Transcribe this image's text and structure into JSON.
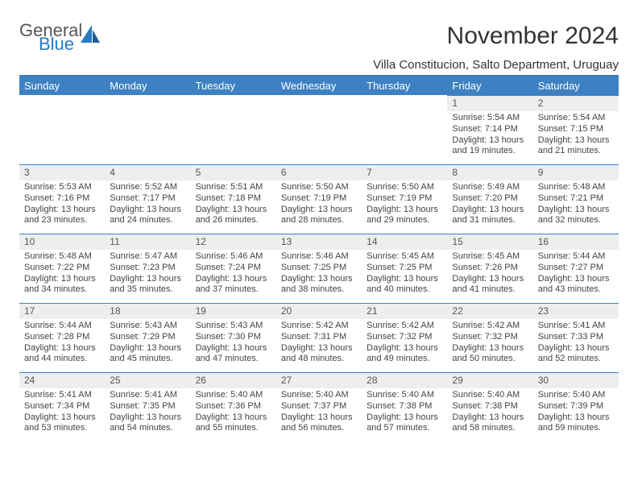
{
  "brand": {
    "line1": "General",
    "line2": "Blue",
    "color_primary": "#3d81c2",
    "color_text": "#555555"
  },
  "title": "November 2024",
  "location": "Villa Constitucion, Salto Department, Uruguay",
  "weekdays": [
    "Sunday",
    "Monday",
    "Tuesday",
    "Wednesday",
    "Thursday",
    "Friday",
    "Saturday"
  ],
  "style": {
    "header_bg": "#3d81c2",
    "header_text": "#ffffff",
    "daynum_bg": "#eeeeee",
    "row_rule": "#3d81c2",
    "body_font_size": 11,
    "title_font_size": 30,
    "location_font_size": 15
  },
  "blank_leading": 5,
  "days": [
    {
      "n": "1",
      "sunrise": "Sunrise: 5:54 AM",
      "sunset": "Sunset: 7:14 PM",
      "day1": "Daylight: 13 hours",
      "day2": "and 19 minutes."
    },
    {
      "n": "2",
      "sunrise": "Sunrise: 5:54 AM",
      "sunset": "Sunset: 7:15 PM",
      "day1": "Daylight: 13 hours",
      "day2": "and 21 minutes."
    },
    {
      "n": "3",
      "sunrise": "Sunrise: 5:53 AM",
      "sunset": "Sunset: 7:16 PM",
      "day1": "Daylight: 13 hours",
      "day2": "and 23 minutes."
    },
    {
      "n": "4",
      "sunrise": "Sunrise: 5:52 AM",
      "sunset": "Sunset: 7:17 PM",
      "day1": "Daylight: 13 hours",
      "day2": "and 24 minutes."
    },
    {
      "n": "5",
      "sunrise": "Sunrise: 5:51 AM",
      "sunset": "Sunset: 7:18 PM",
      "day1": "Daylight: 13 hours",
      "day2": "and 26 minutes."
    },
    {
      "n": "6",
      "sunrise": "Sunrise: 5:50 AM",
      "sunset": "Sunset: 7:19 PM",
      "day1": "Daylight: 13 hours",
      "day2": "and 28 minutes."
    },
    {
      "n": "7",
      "sunrise": "Sunrise: 5:50 AM",
      "sunset": "Sunset: 7:19 PM",
      "day1": "Daylight: 13 hours",
      "day2": "and 29 minutes."
    },
    {
      "n": "8",
      "sunrise": "Sunrise: 5:49 AM",
      "sunset": "Sunset: 7:20 PM",
      "day1": "Daylight: 13 hours",
      "day2": "and 31 minutes."
    },
    {
      "n": "9",
      "sunrise": "Sunrise: 5:48 AM",
      "sunset": "Sunset: 7:21 PM",
      "day1": "Daylight: 13 hours",
      "day2": "and 32 minutes."
    },
    {
      "n": "10",
      "sunrise": "Sunrise: 5:48 AM",
      "sunset": "Sunset: 7:22 PM",
      "day1": "Daylight: 13 hours",
      "day2": "and 34 minutes."
    },
    {
      "n": "11",
      "sunrise": "Sunrise: 5:47 AM",
      "sunset": "Sunset: 7:23 PM",
      "day1": "Daylight: 13 hours",
      "day2": "and 35 minutes."
    },
    {
      "n": "12",
      "sunrise": "Sunrise: 5:46 AM",
      "sunset": "Sunset: 7:24 PM",
      "day1": "Daylight: 13 hours",
      "day2": "and 37 minutes."
    },
    {
      "n": "13",
      "sunrise": "Sunrise: 5:46 AM",
      "sunset": "Sunset: 7:25 PM",
      "day1": "Daylight: 13 hours",
      "day2": "and 38 minutes."
    },
    {
      "n": "14",
      "sunrise": "Sunrise: 5:45 AM",
      "sunset": "Sunset: 7:25 PM",
      "day1": "Daylight: 13 hours",
      "day2": "and 40 minutes."
    },
    {
      "n": "15",
      "sunrise": "Sunrise: 5:45 AM",
      "sunset": "Sunset: 7:26 PM",
      "day1": "Daylight: 13 hours",
      "day2": "and 41 minutes."
    },
    {
      "n": "16",
      "sunrise": "Sunrise: 5:44 AM",
      "sunset": "Sunset: 7:27 PM",
      "day1": "Daylight: 13 hours",
      "day2": "and 43 minutes."
    },
    {
      "n": "17",
      "sunrise": "Sunrise: 5:44 AM",
      "sunset": "Sunset: 7:28 PM",
      "day1": "Daylight: 13 hours",
      "day2": "and 44 minutes."
    },
    {
      "n": "18",
      "sunrise": "Sunrise: 5:43 AM",
      "sunset": "Sunset: 7:29 PM",
      "day1": "Daylight: 13 hours",
      "day2": "and 45 minutes."
    },
    {
      "n": "19",
      "sunrise": "Sunrise: 5:43 AM",
      "sunset": "Sunset: 7:30 PM",
      "day1": "Daylight: 13 hours",
      "day2": "and 47 minutes."
    },
    {
      "n": "20",
      "sunrise": "Sunrise: 5:42 AM",
      "sunset": "Sunset: 7:31 PM",
      "day1": "Daylight: 13 hours",
      "day2": "and 48 minutes."
    },
    {
      "n": "21",
      "sunrise": "Sunrise: 5:42 AM",
      "sunset": "Sunset: 7:32 PM",
      "day1": "Daylight: 13 hours",
      "day2": "and 49 minutes."
    },
    {
      "n": "22",
      "sunrise": "Sunrise: 5:42 AM",
      "sunset": "Sunset: 7:32 PM",
      "day1": "Daylight: 13 hours",
      "day2": "and 50 minutes."
    },
    {
      "n": "23",
      "sunrise": "Sunrise: 5:41 AM",
      "sunset": "Sunset: 7:33 PM",
      "day1": "Daylight: 13 hours",
      "day2": "and 52 minutes."
    },
    {
      "n": "24",
      "sunrise": "Sunrise: 5:41 AM",
      "sunset": "Sunset: 7:34 PM",
      "day1": "Daylight: 13 hours",
      "day2": "and 53 minutes."
    },
    {
      "n": "25",
      "sunrise": "Sunrise: 5:41 AM",
      "sunset": "Sunset: 7:35 PM",
      "day1": "Daylight: 13 hours",
      "day2": "and 54 minutes."
    },
    {
      "n": "26",
      "sunrise": "Sunrise: 5:40 AM",
      "sunset": "Sunset: 7:36 PM",
      "day1": "Daylight: 13 hours",
      "day2": "and 55 minutes."
    },
    {
      "n": "27",
      "sunrise": "Sunrise: 5:40 AM",
      "sunset": "Sunset: 7:37 PM",
      "day1": "Daylight: 13 hours",
      "day2": "and 56 minutes."
    },
    {
      "n": "28",
      "sunrise": "Sunrise: 5:40 AM",
      "sunset": "Sunset: 7:38 PM",
      "day1": "Daylight: 13 hours",
      "day2": "and 57 minutes."
    },
    {
      "n": "29",
      "sunrise": "Sunrise: 5:40 AM",
      "sunset": "Sunset: 7:38 PM",
      "day1": "Daylight: 13 hours",
      "day2": "and 58 minutes."
    },
    {
      "n": "30",
      "sunrise": "Sunrise: 5:40 AM",
      "sunset": "Sunset: 7:39 PM",
      "day1": "Daylight: 13 hours",
      "day2": "and 59 minutes."
    }
  ]
}
